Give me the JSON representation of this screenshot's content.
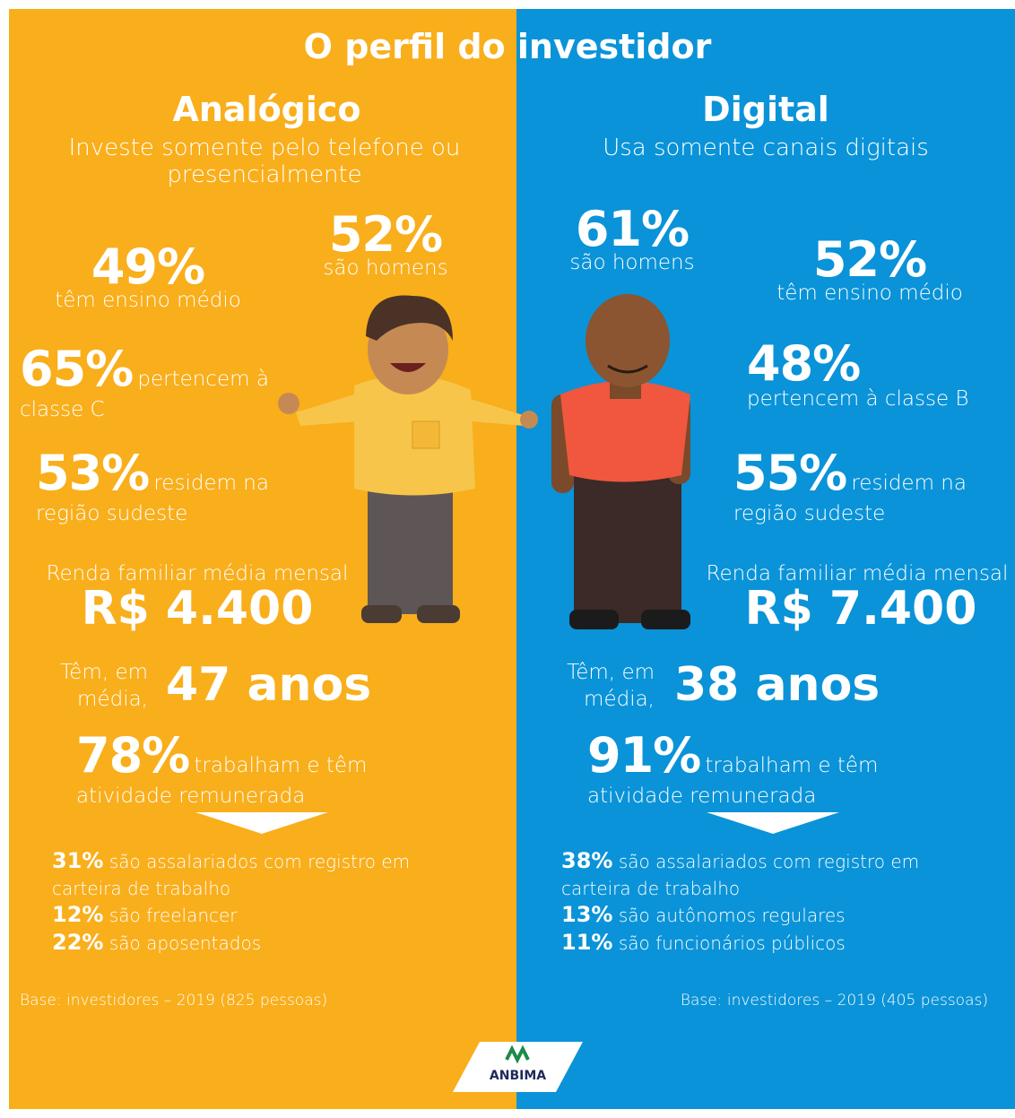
{
  "title": "O perfil do investidor",
  "profiles": [
    {
      "heading": "Analógico",
      "subtitle": "Investe somente pelo telefone ou presencialmente",
      "stats": [
        {
          "value": "52%",
          "label": "são homens"
        },
        {
          "value": "49%",
          "label": "têm ensino médio"
        },
        {
          "value": "65%",
          "label": "pertencem à classe C"
        },
        {
          "value": "53%",
          "label": "residem na região sudeste"
        }
      ],
      "income_label": "Renda familiar média mensal",
      "income": "R$ 4.400",
      "age_label": "Têm, em média,",
      "age": "47 anos",
      "work": {
        "value": "78%",
        "label": "trabalham e têm atividade remunerada"
      },
      "breakdown": [
        {
          "value": "31%",
          "label": "são assalariados com registro em carteira de trabalho"
        },
        {
          "value": "12%",
          "label": "são freelancer"
        },
        {
          "value": "22%",
          "label": "são aposentados"
        }
      ],
      "base": "Base: investidores – 2019 (825 pessoas)"
    },
    {
      "heading": "Digital",
      "subtitle": "Usa somente canais digitais",
      "stats": [
        {
          "value": "61%",
          "label": "são homens"
        },
        {
          "value": "52%",
          "label": "têm ensino médio"
        },
        {
          "value": "48%",
          "label": "pertencem à classe B"
        },
        {
          "value": "55%",
          "label": "residem na região sudeste"
        }
      ],
      "income_label": "Renda familiar média mensal",
      "income": "R$ 7.400",
      "age_label": "Têm, em média,",
      "age": "38 anos",
      "work": {
        "value": "91%",
        "label": "trabalham e têm atividade remunerada"
      },
      "breakdown": [
        {
          "value": "38%",
          "label": "são assalariados com registro em carteira de trabalho"
        },
        {
          "value": "13%",
          "label": "são autônomos regulares"
        },
        {
          "value": "11%",
          "label": "são funcionários públicos"
        }
      ],
      "base": "Base: investidores – 2019 (405 pessoas)"
    }
  ],
  "logo": "ANBIMA"
}
